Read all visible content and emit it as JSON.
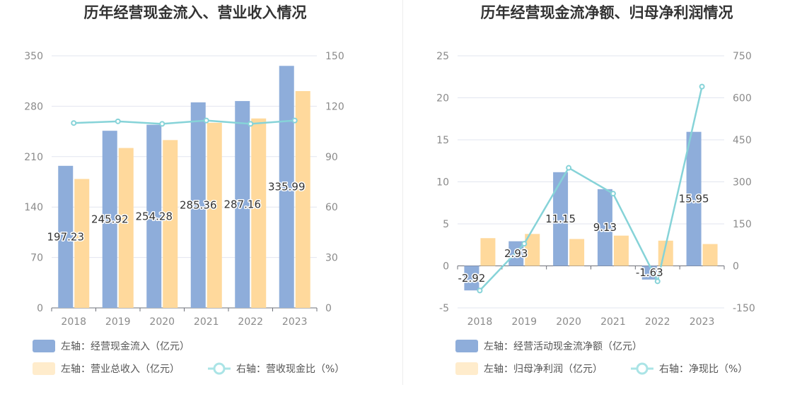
{
  "chart_data": [
    {
      "type": "bar",
      "title": "历年经营现金流入、营业收入情况",
      "categories": [
        "2018",
        "2019",
        "2020",
        "2021",
        "2022",
        "2023"
      ],
      "left_axis": {
        "min": 0,
        "max": 350,
        "ticks": [
          "0",
          "70",
          "140",
          "210",
          "280",
          "350"
        ]
      },
      "right_axis": {
        "min": 0,
        "max": 150,
        "ticks": [
          "0",
          "30",
          "60",
          "90",
          "120",
          "150"
        ]
      },
      "series": [
        {
          "name": "左轴：经营现金流入（亿元）",
          "type": "bar",
          "axis": "left",
          "color": "#8eadda",
          "values": [
            197.23,
            245.92,
            254.28,
            285.36,
            287.16,
            335.99
          ],
          "labels": [
            "197.23",
            "245.92",
            "254.28",
            "285.36",
            "287.16",
            "335.99"
          ]
        },
        {
          "name": "左轴：营业总收入（亿元）",
          "type": "bar",
          "axis": "left",
          "color": "#ffd99c",
          "values": [
            179,
            222,
            233,
            257,
            263,
            301
          ]
        },
        {
          "name": "右轴：营收现金比（%）",
          "type": "line",
          "axis": "right",
          "color": "#86d3d8",
          "values": [
            110,
            111,
            109.5,
            111.5,
            109.5,
            111.5
          ]
        }
      ]
    },
    {
      "type": "bar",
      "title": "历年经营现金流净额、归母净利润情况",
      "categories": [
        "2018",
        "2019",
        "2020",
        "2021",
        "2022",
        "2023"
      ],
      "left_axis": {
        "min": -5,
        "max": 25,
        "ticks": [
          "-5",
          "0",
          "5",
          "10",
          "15",
          "20",
          "25"
        ]
      },
      "right_axis": {
        "min": -150,
        "max": 750,
        "ticks": [
          "-150",
          "0",
          "150",
          "300",
          "450",
          "600",
          "750"
        ]
      },
      "series": [
        {
          "name": "左轴：经营活动现金流净额（亿元）",
          "type": "bar",
          "axis": "left",
          "color": "#8eadda",
          "values": [
            -2.92,
            2.93,
            11.15,
            9.13,
            -1.63,
            15.95
          ],
          "labels": [
            "-2.92",
            "2.93",
            "11.15",
            "9.13",
            "-1.63",
            "15.95"
          ]
        },
        {
          "name": "左轴：归母净利润（亿元）",
          "type": "bar",
          "axis": "left",
          "color": "#ffd99c",
          "values": [
            3.3,
            3.8,
            3.2,
            3.6,
            3.0,
            2.6
          ]
        },
        {
          "name": "右轴：净现比（%）",
          "type": "line",
          "axis": "right",
          "color": "#86d3d8",
          "values": [
            -88,
            79,
            350,
            258,
            -55,
            640
          ]
        }
      ]
    }
  ]
}
